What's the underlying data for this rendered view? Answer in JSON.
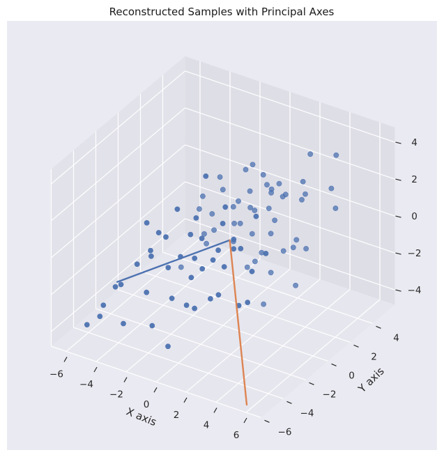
{
  "chart_data": {
    "type": "scatter3d",
    "title": "Reconstructed Samples with Principal Axes",
    "xlabel": "X axis",
    "ylabel": "Y axis",
    "zlabel": "",
    "x_ticks": [
      "−6",
      "−4",
      "−2",
      "0",
      "2",
      "4",
      "6"
    ],
    "y_ticks": [
      "−6",
      "−4",
      "−2",
      "0",
      "2",
      "4"
    ],
    "z_ticks": [
      "−4",
      "−2",
      "0",
      "2",
      "4"
    ],
    "xlim": [
      -7,
      7
    ],
    "ylim": [
      -6,
      6
    ],
    "zlim": [
      -4.8,
      4.8
    ],
    "grid": true,
    "points_color": "#4c72b0",
    "scatter_points": [
      [
        0.3,
        -0.2,
        1.8
      ],
      [
        1.2,
        0.8,
        2.4
      ],
      [
        -0.5,
        0.4,
        2.9
      ],
      [
        2.1,
        1.5,
        2.2
      ],
      [
        0.8,
        -1.1,
        1.5
      ],
      [
        -1.2,
        -0.8,
        1.1
      ],
      [
        1.6,
        2.2,
        1.9
      ],
      [
        3.0,
        1.0,
        3.2
      ],
      [
        0.1,
        1.9,
        2.7
      ],
      [
        -0.3,
        -1.5,
        0.6
      ],
      [
        2.5,
        -0.4,
        2.0
      ],
      [
        1.0,
        0.2,
        0.9
      ],
      [
        -1.8,
        0.6,
        1.4
      ],
      [
        0.6,
        2.8,
        2.1
      ],
      [
        3.4,
        2.6,
        2.6
      ],
      [
        -2.4,
        -1.9,
        0.3
      ],
      [
        1.9,
        -1.6,
        1.2
      ],
      [
        -0.9,
        1.2,
        1.7
      ],
      [
        2.8,
        3.3,
        1.1
      ],
      [
        0.4,
        -2.4,
        -0.4
      ],
      [
        4.0,
        2.0,
        2.4
      ],
      [
        -2.9,
        -0.2,
        0.8
      ],
      [
        1.3,
        3.6,
        0.7
      ],
      [
        -1.5,
        -2.9,
        -0.6
      ],
      [
        3.6,
        -1.0,
        0.6
      ],
      [
        -0.6,
        0.0,
        0.2
      ],
      [
        0.9,
        1.4,
        -0.3
      ],
      [
        -3.4,
        -1.2,
        -0.1
      ],
      [
        2.2,
        0.5,
        -0.5
      ],
      [
        -1.1,
        2.4,
        0.1
      ],
      [
        0.0,
        -0.9,
        -0.8
      ],
      [
        4.4,
        3.8,
        1.9
      ],
      [
        -2.0,
        1.0,
        -0.9
      ],
      [
        1.7,
        -2.7,
        -1.3
      ],
      [
        -3.8,
        -2.6,
        -1.2
      ],
      [
        2.9,
        2.4,
        -1.0
      ],
      [
        -0.2,
        3.1,
        -0.2
      ],
      [
        0.7,
        -3.5,
        -1.9
      ],
      [
        -4.2,
        -0.8,
        -1.8
      ],
      [
        3.2,
        -2.1,
        -1.6
      ],
      [
        -1.6,
        -0.4,
        -1.4
      ],
      [
        1.1,
        0.7,
        -1.7
      ],
      [
        -2.6,
        2.0,
        -2.1
      ],
      [
        0.5,
        -1.8,
        -2.3
      ],
      [
        -4.8,
        -3.2,
        -2.4
      ],
      [
        2.0,
        1.6,
        -2.2
      ],
      [
        -0.8,
        -2.2,
        -2.8
      ],
      [
        -3.1,
        0.4,
        -2.7
      ],
      [
        1.5,
        -0.6,
        -3.0
      ],
      [
        -5.4,
        -1.9,
        -3.1
      ],
      [
        0.2,
        2.6,
        -2.6
      ],
      [
        -1.9,
        -3.8,
        -3.4
      ],
      [
        2.7,
        0.0,
        -2.9
      ],
      [
        -3.6,
        -4.1,
        -3.6
      ],
      [
        -5.9,
        -2.8,
        -3.9
      ],
      [
        -0.4,
        -4.4,
        -3.8
      ],
      [
        1.8,
        3.0,
        -1.8
      ],
      [
        -2.3,
        -1.5,
        -3.2
      ],
      [
        3.8,
        1.4,
        -2.3
      ],
      [
        -6.1,
        -4.0,
        -4.4
      ],
      [
        0.9,
        4.4,
        0.3
      ],
      [
        -1.0,
        4.0,
        1.6
      ],
      [
        2.4,
        4.6,
        2.8
      ],
      [
        -0.7,
        -0.6,
        3.4
      ],
      [
        1.4,
        -0.3,
        -0.1
      ],
      [
        -2.8,
        -3.1,
        -2.2
      ],
      [
        4.6,
        0.4,
        0.9
      ],
      [
        5.2,
        3.1,
        1.4
      ],
      [
        3.9,
        4.9,
        3.0
      ],
      [
        -4.5,
        -5.0,
        -3.0
      ],
      [
        0.3,
        0.6,
        0.5
      ],
      [
        -0.1,
        -0.3,
        -0.6
      ],
      [
        1.0,
        1.1,
        1.3
      ],
      [
        -1.4,
        0.9,
        0.4
      ],
      [
        0.6,
        -0.7,
        -1.1
      ],
      [
        2.3,
        1.2,
        0.2
      ],
      [
        -2.1,
        -0.1,
        -0.4
      ],
      [
        1.6,
        -1.2,
        0.4
      ],
      [
        -0.5,
        1.6,
        -1.2
      ],
      [
        0.8,
        0.3,
        2.0
      ],
      [
        3.3,
        0.2,
        1.7
      ],
      [
        -3.2,
        -2.2,
        -0.5
      ],
      [
        1.2,
        2.5,
        0.6
      ],
      [
        -1.3,
        -1.1,
        -2.0
      ],
      [
        2.6,
        -0.9,
        -0.7
      ],
      [
        -0.9,
        -2.6,
        0.0
      ],
      [
        0.4,
        3.4,
        1.2
      ],
      [
        -2.7,
        1.5,
        0.0
      ],
      [
        4.2,
        1.8,
        -0.4
      ],
      [
        -3.9,
        -1.6,
        0.5
      ]
    ],
    "principal_axes": [
      {
        "color": "#4c72b0",
        "start": [
          0.3,
          0.2,
          -0.2
        ],
        "end": [
          -5.2,
          -2.5,
          -2.6
        ]
      },
      {
        "color": "#dd8452",
        "start": [
          0.3,
          0.2,
          -0.2
        ],
        "end": [
          5.6,
          -5.4,
          -4.8
        ]
      }
    ]
  }
}
